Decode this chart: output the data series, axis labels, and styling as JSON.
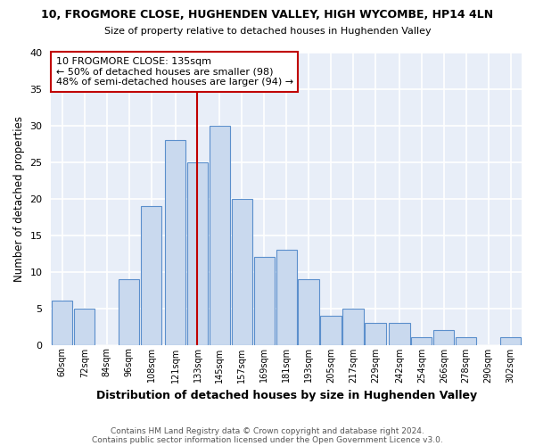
{
  "title": "10, FROGMORE CLOSE, HUGHENDEN VALLEY, HIGH WYCOMBE, HP14 4LN",
  "subtitle": "Size of property relative to detached houses in Hughenden Valley",
  "xlabel": "Distribution of detached houses by size in Hughenden Valley",
  "ylabel": "Number of detached properties",
  "footnote1": "Contains HM Land Registry data © Crown copyright and database right 2024.",
  "footnote2": "Contains public sector information licensed under the Open Government Licence v3.0.",
  "bins": [
    60,
    72,
    84,
    96,
    108,
    121,
    133,
    145,
    157,
    169,
    181,
    193,
    205,
    217,
    229,
    242,
    254,
    266,
    278,
    290,
    302
  ],
  "bin_width": 12,
  "values": [
    6,
    5,
    0,
    9,
    19,
    28,
    25,
    30,
    20,
    12,
    13,
    9,
    4,
    5,
    3,
    3,
    1,
    2,
    1,
    0,
    1
  ],
  "bar_color": "#c9d9ee",
  "bar_edge_color": "#5b8fcc",
  "marker_value": 133,
  "marker_color": "#c00000",
  "annotation_line1": "10 FROGMORE CLOSE: 135sqm",
  "annotation_line2": "← 50% of detached houses are smaller (98)",
  "annotation_line3": "48% of semi-detached houses are larger (94) →",
  "annotation_box_color": "#ffffff",
  "annotation_box_edge": "#c00000",
  "ylim": [
    0,
    40
  ],
  "yticks": [
    0,
    5,
    10,
    15,
    20,
    25,
    30,
    35,
    40
  ],
  "background_color": "#ffffff",
  "plot_bg_color": "#e8eef8",
  "grid_color": "#ffffff",
  "title_fontsize": 9,
  "subtitle_fontsize": 8
}
